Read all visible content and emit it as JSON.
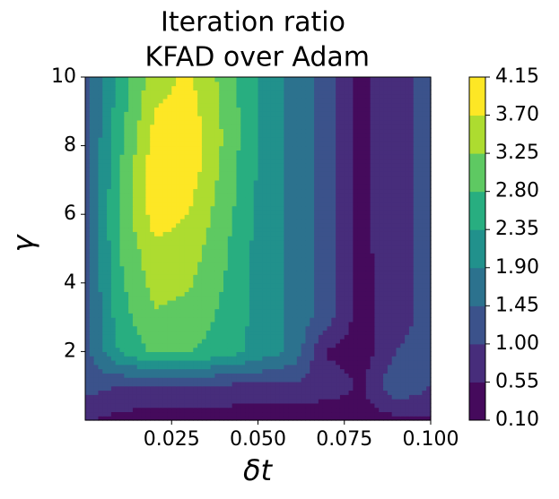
{
  "chart_data": {
    "type": "contour",
    "title": [
      "Iteration ratio",
      " KFAD over Adam"
    ],
    "xlabel": "δt",
    "ylabel": "γ",
    "x": [
      0,
      0.01,
      0.02,
      0.03,
      0.04,
      0.05,
      0.06,
      0.07,
      0.08,
      0.09,
      0.1
    ],
    "y": [
      0,
      1,
      2,
      3,
      4,
      5,
      6,
      7,
      8,
      9,
      10
    ],
    "z": [
      [
        0.6,
        0.4,
        0.3,
        0.3,
        0.3,
        0.2,
        0.2,
        0.2,
        0.3,
        0.4,
        0.5
      ],
      [
        1.2,
        1.0,
        0.9,
        0.9,
        0.9,
        0.9,
        0.9,
        0.8,
        0.5,
        1.4,
        1.0
      ],
      [
        1.3,
        2.4,
        2.9,
        2.8,
        2.6,
        2.2,
        1.8,
        0.5,
        0.3,
        1.0,
        1.1
      ],
      [
        1.3,
        2.6,
        3.2,
        3.1,
        2.7,
        2.2,
        1.8,
        1.2,
        0.3,
        0.9,
        1.1
      ],
      [
        1.3,
        2.7,
        3.4,
        3.3,
        2.8,
        2.2,
        1.8,
        1.2,
        0.3,
        0.9,
        1.1
      ],
      [
        1.3,
        2.8,
        3.6,
        3.5,
        2.9,
        2.2,
        1.8,
        1.2,
        0.4,
        0.9,
        1.1
      ],
      [
        1.3,
        2.9,
        3.9,
        3.7,
        3.0,
        2.3,
        1.8,
        1.2,
        0.4,
        0.9,
        1.1
      ],
      [
        1.3,
        2.8,
        4.0,
        3.9,
        3.1,
        2.3,
        1.8,
        1.2,
        0.4,
        0.9,
        1.1
      ],
      [
        1.3,
        2.7,
        3.9,
        4.1,
        3.2,
        2.3,
        1.8,
        1.2,
        0.4,
        0.9,
        1.1
      ],
      [
        1.3,
        2.6,
        3.7,
        3.9,
        3.2,
        2.3,
        1.8,
        1.2,
        0.4,
        0.9,
        1.1
      ],
      [
        1.3,
        2.5,
        3.5,
        3.8,
        3.1,
        2.3,
        1.8,
        1.2,
        0.4,
        0.9,
        1.1
      ]
    ],
    "xlim": [
      0,
      0.1
    ],
    "ylim": [
      0,
      10
    ],
    "xticks": [
      0.025,
      {
        "value": 0.05,
        "label": "0.050"
      },
      0.075,
      {
        "value": 0.1,
        "label": "0.100"
      }
    ],
    "yticks": [
      2,
      4,
      6,
      8,
      10
    ],
    "cticks": [
      {
        "value": 0.1,
        "label": "0.10"
      },
      0.55,
      {
        "value": 1,
        "label": "1.00"
      },
      1.45,
      {
        "value": 1.9,
        "label": "1.90"
      },
      2.35,
      {
        "value": 2.8,
        "label": "2.80"
      },
      3.25,
      {
        "value": 3.7,
        "label": "3.70"
      },
      4.15
    ],
    "colors": [
      "#450a5c",
      "#472d7b",
      "#3b528b",
      "#2c728e",
      "#21918c",
      "#28ae80",
      "#5ec962",
      "#addc30",
      "#fde725"
    ]
  }
}
